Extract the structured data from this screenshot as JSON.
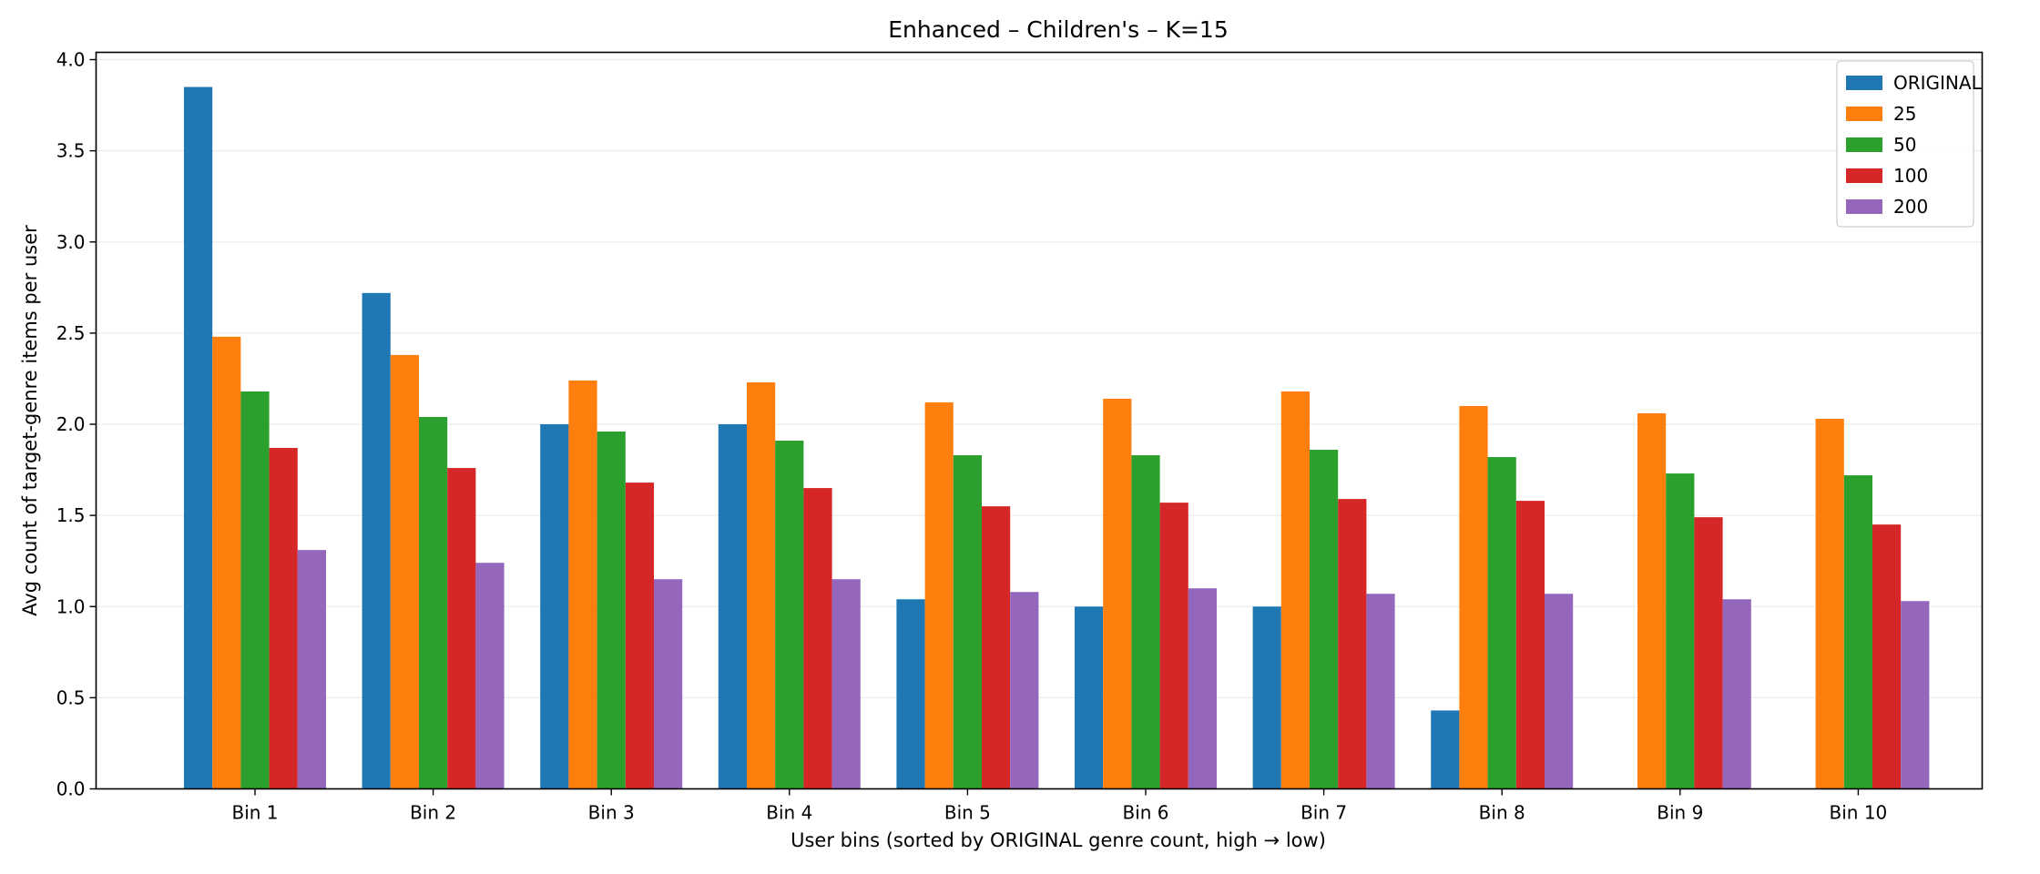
{
  "chart_data": {
    "type": "bar",
    "title": "Enhanced – Children's – K=15",
    "xlabel": "User bins (sorted by ORIGINAL genre count, high → low)",
    "ylabel": "Avg count of target-genre items per user",
    "categories": [
      "Bin 1",
      "Bin 2",
      "Bin 3",
      "Bin 4",
      "Bin 5",
      "Bin 6",
      "Bin 7",
      "Bin 8",
      "Bin 9",
      "Bin 10"
    ],
    "ylim": [
      0,
      4.0
    ],
    "yticks": [
      "0.0",
      "0.5",
      "1.0",
      "1.5",
      "2.0",
      "2.5",
      "3.0",
      "3.5",
      "4.0"
    ],
    "grid": "y",
    "legend_position": "top-right",
    "series": [
      {
        "name": "ORIGINAL",
        "color": "#1f77b4",
        "values": [
          3.85,
          2.72,
          2.0,
          2.0,
          1.04,
          1.0,
          1.0,
          0.43,
          0,
          0
        ]
      },
      {
        "name": "25",
        "color": "#ff7f0e",
        "values": [
          2.48,
          2.38,
          2.24,
          2.23,
          2.12,
          2.14,
          2.18,
          2.1,
          2.06,
          2.03
        ]
      },
      {
        "name": "50",
        "color": "#2ca02c",
        "values": [
          2.18,
          2.04,
          1.96,
          1.91,
          1.83,
          1.83,
          1.86,
          1.82,
          1.73,
          1.72
        ]
      },
      {
        "name": "100",
        "color": "#d62728",
        "values": [
          1.87,
          1.76,
          1.68,
          1.65,
          1.55,
          1.57,
          1.59,
          1.58,
          1.49,
          1.45
        ]
      },
      {
        "name": "200",
        "color": "#9467bd",
        "values": [
          1.31,
          1.24,
          1.15,
          1.15,
          1.08,
          1.1,
          1.07,
          1.07,
          1.04,
          1.03
        ]
      }
    ]
  }
}
